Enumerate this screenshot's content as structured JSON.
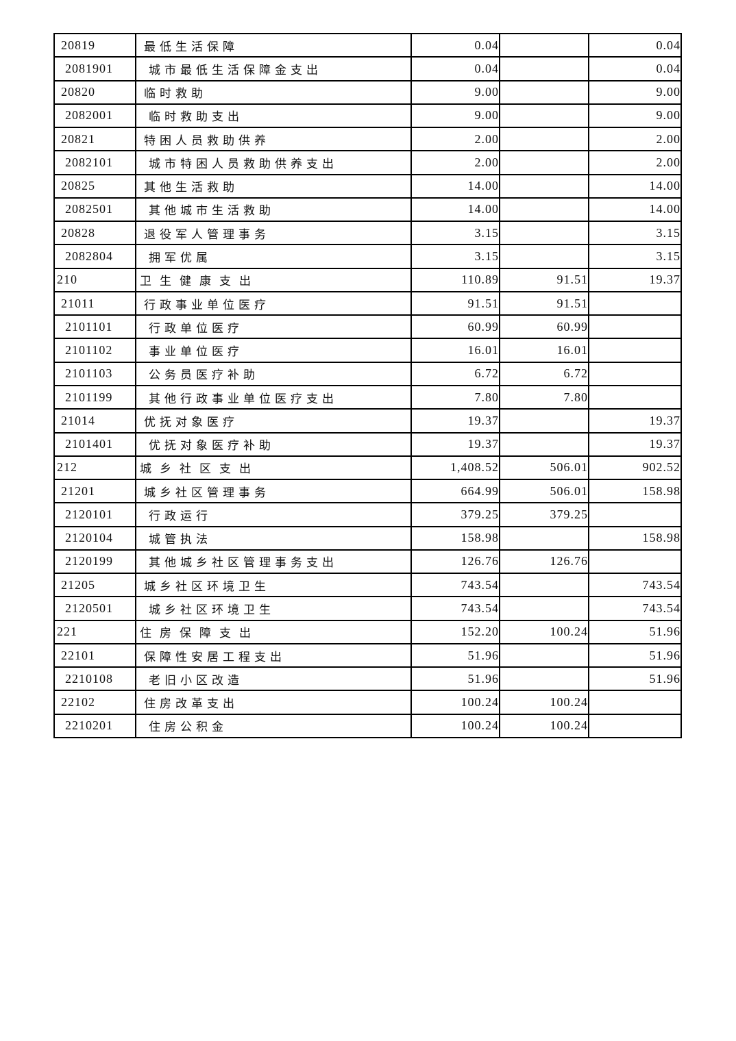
{
  "page": {
    "background_color": "#ffffff",
    "border_color": "#000000",
    "text_color": "#111111"
  },
  "table": {
    "columns": [
      "code",
      "name",
      "value1",
      "value2",
      "value3"
    ],
    "rows": [
      {
        "code": "20819",
        "name": "最低生活保障",
        "level": 2,
        "values": [
          "0.04",
          "",
          "0.04"
        ]
      },
      {
        "code": "2081901",
        "name": "城市最低生活保障金支出",
        "level": 3,
        "values": [
          "0.04",
          "",
          "0.04"
        ]
      },
      {
        "code": "20820",
        "name": "临时救助",
        "level": 2,
        "values": [
          "9.00",
          "",
          "9.00"
        ]
      },
      {
        "code": "2082001",
        "name": "临时救助支出",
        "level": 3,
        "values": [
          "9.00",
          "",
          "9.00"
        ]
      },
      {
        "code": "20821",
        "name": "特困人员救助供养",
        "level": 2,
        "values": [
          "2.00",
          "",
          "2.00"
        ]
      },
      {
        "code": "2082101",
        "name": "城市特困人员救助供养支出",
        "level": 3,
        "values": [
          "2.00",
          "",
          "2.00"
        ]
      },
      {
        "code": "20825",
        "name": "其他生活救助",
        "level": 2,
        "values": [
          "14.00",
          "",
          "14.00"
        ]
      },
      {
        "code": "2082501",
        "name": "其他城市生活救助",
        "level": 3,
        "values": [
          "14.00",
          "",
          "14.00"
        ]
      },
      {
        "code": "20828",
        "name": "退役军人管理事务",
        "level": 2,
        "values": [
          "3.15",
          "",
          "3.15"
        ]
      },
      {
        "code": "2082804",
        "name": "拥军优属",
        "level": 3,
        "values": [
          "3.15",
          "",
          "3.15"
        ]
      },
      {
        "code": "210",
        "name": "卫生健康支出",
        "level": 1,
        "values": [
          "110.89",
          "91.51",
          "19.37"
        ]
      },
      {
        "code": "21011",
        "name": "行政事业单位医疗",
        "level": 2,
        "values": [
          "91.51",
          "91.51",
          ""
        ]
      },
      {
        "code": "2101101",
        "name": "行政单位医疗",
        "level": 3,
        "values": [
          "60.99",
          "60.99",
          ""
        ]
      },
      {
        "code": "2101102",
        "name": "事业单位医疗",
        "level": 3,
        "values": [
          "16.01",
          "16.01",
          ""
        ]
      },
      {
        "code": "2101103",
        "name": "公务员医疗补助",
        "level": 3,
        "values": [
          "6.72",
          "6.72",
          ""
        ]
      },
      {
        "code": "2101199",
        "name": "其他行政事业单位医疗支出",
        "level": 3,
        "values": [
          "7.80",
          "7.80",
          ""
        ]
      },
      {
        "code": "21014",
        "name": "优抚对象医疗",
        "level": 2,
        "values": [
          "19.37",
          "",
          "19.37"
        ]
      },
      {
        "code": "2101401",
        "name": "优抚对象医疗补助",
        "level": 3,
        "values": [
          "19.37",
          "",
          "19.37"
        ]
      },
      {
        "code": "212",
        "name": "城乡社区支出",
        "level": 1,
        "values": [
          "1,408.52",
          "506.01",
          "902.52"
        ]
      },
      {
        "code": "21201",
        "name": "城乡社区管理事务",
        "level": 2,
        "values": [
          "664.99",
          "506.01",
          "158.98"
        ]
      },
      {
        "code": "2120101",
        "name": "行政运行",
        "level": 3,
        "values": [
          "379.25",
          "379.25",
          ""
        ]
      },
      {
        "code": "2120104",
        "name": "城管执法",
        "level": 3,
        "values": [
          "158.98",
          "",
          "158.98"
        ]
      },
      {
        "code": "2120199",
        "name": "其他城乡社区管理事务支出",
        "level": 3,
        "values": [
          "126.76",
          "126.76",
          ""
        ]
      },
      {
        "code": "21205",
        "name": "城乡社区环境卫生",
        "level": 2,
        "values": [
          "743.54",
          "",
          "743.54"
        ]
      },
      {
        "code": "2120501",
        "name": "城乡社区环境卫生",
        "level": 3,
        "values": [
          "743.54",
          "",
          "743.54"
        ]
      },
      {
        "code": "221",
        "name": "住房保障支出",
        "level": 1,
        "values": [
          "152.20",
          "100.24",
          "51.96"
        ]
      },
      {
        "code": "22101",
        "name": "保障性安居工程支出",
        "level": 2,
        "values": [
          "51.96",
          "",
          "51.96"
        ]
      },
      {
        "code": "2210108",
        "name": "老旧小区改造",
        "level": 3,
        "values": [
          "51.96",
          "",
          "51.96"
        ]
      },
      {
        "code": "22102",
        "name": "住房改革支出",
        "level": 2,
        "values": [
          "100.24",
          "100.24",
          ""
        ]
      },
      {
        "code": "2210201",
        "name": "住房公积金",
        "level": 3,
        "values": [
          "100.24",
          "100.24",
          ""
        ]
      }
    ]
  }
}
